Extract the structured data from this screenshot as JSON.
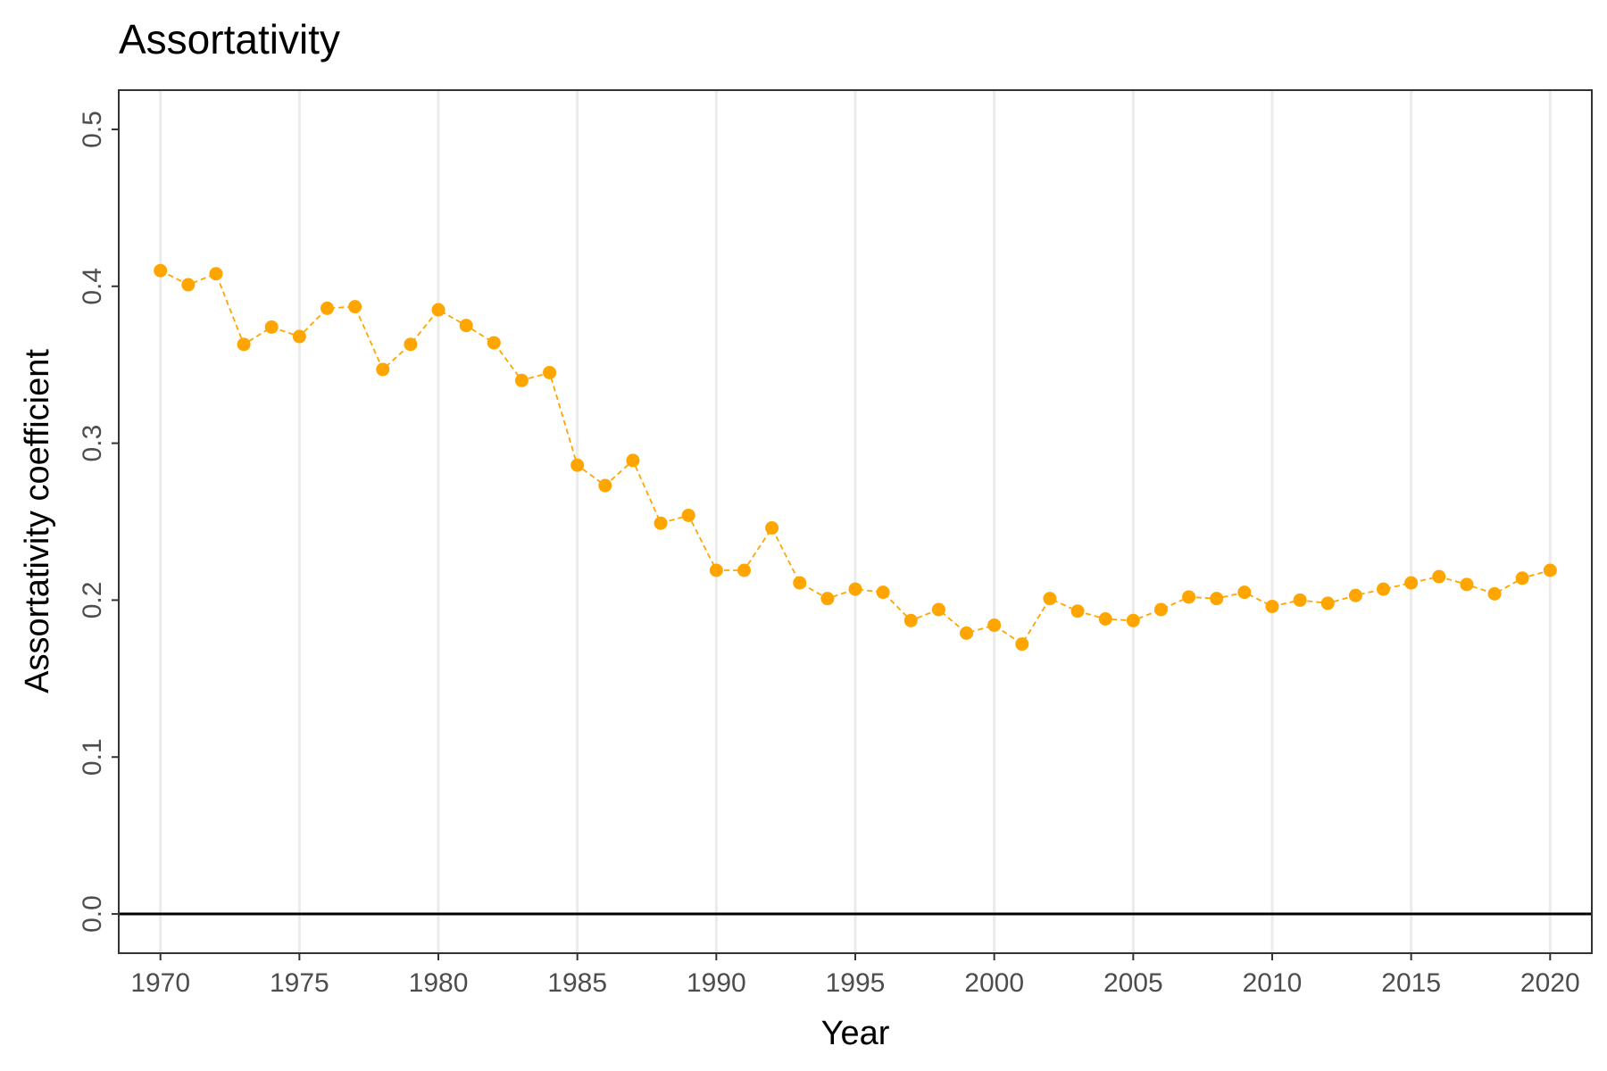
{
  "chart_data": {
    "type": "line",
    "title": "Assortativity",
    "xlabel": "Year",
    "ylabel": "Assortativity coefficient",
    "xlim": [
      1968.5,
      2021.5
    ],
    "ylim": [
      -0.025,
      0.525
    ],
    "x_ticks": [
      1970,
      1975,
      1980,
      1985,
      1990,
      1995,
      2000,
      2005,
      2010,
      2015,
      2020
    ],
    "x_tick_labels": [
      "1970",
      "1975",
      "1980",
      "1985",
      "1990",
      "1995",
      "2000",
      "2005",
      "2010",
      "2015",
      "2020"
    ],
    "y_ticks": [
      0.0,
      0.1,
      0.2,
      0.3,
      0.4,
      0.5
    ],
    "y_tick_labels": [
      "0.0",
      "0.1",
      "0.2",
      "0.3",
      "0.4",
      "0.5"
    ],
    "grid": "vertical major",
    "reference_line_y": 0,
    "color": "#FFA500",
    "line_style": "dashed",
    "x": [
      1970,
      1971,
      1972,
      1973,
      1974,
      1975,
      1976,
      1977,
      1978,
      1979,
      1980,
      1981,
      1982,
      1983,
      1984,
      1985,
      1986,
      1987,
      1988,
      1989,
      1990,
      1991,
      1992,
      1993,
      1994,
      1995,
      1996,
      1997,
      1998,
      1999,
      2000,
      2001,
      2002,
      2003,
      2004,
      2005,
      2006,
      2007,
      2008,
      2009,
      2010,
      2011,
      2012,
      2013,
      2014,
      2015,
      2016,
      2017,
      2018,
      2019,
      2020
    ],
    "values": [
      0.41,
      0.401,
      0.408,
      0.363,
      0.374,
      0.368,
      0.386,
      0.387,
      0.347,
      0.363,
      0.385,
      0.375,
      0.364,
      0.34,
      0.345,
      0.286,
      0.273,
      0.289,
      0.249,
      0.254,
      0.219,
      0.219,
      0.246,
      0.211,
      0.201,
      0.207,
      0.205,
      0.187,
      0.194,
      0.179,
      0.184,
      0.172,
      0.201,
      0.193,
      0.188,
      0.187,
      0.194,
      0.202,
      0.201,
      0.205,
      0.196,
      0.2,
      0.198,
      0.203,
      0.207,
      0.211,
      0.215,
      0.21,
      0.204,
      0.214,
      0.219
    ]
  }
}
